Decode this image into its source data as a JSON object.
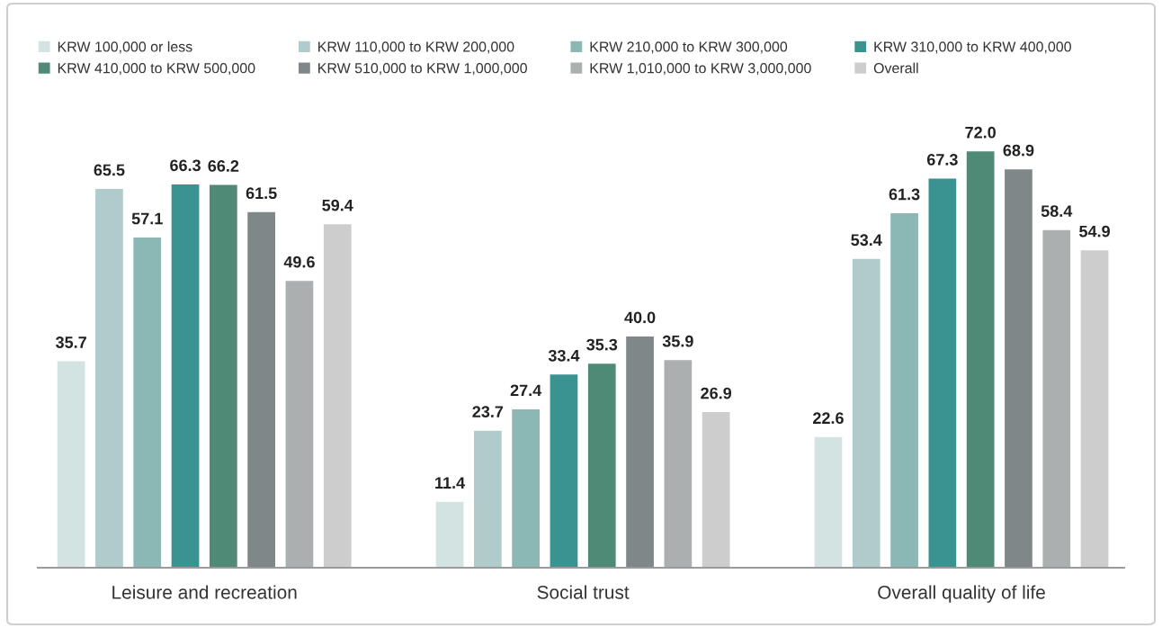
{
  "chart_data": {
    "type": "bar",
    "categories": [
      "Leisure and recreation",
      "Social trust",
      "Overall quality of life"
    ],
    "series": [
      {
        "name": "KRW 100,000 or less",
        "color": "#d3e3e1",
        "values": [
          35.7,
          11.4,
          22.6
        ],
        "value_labels": [
          "35.7",
          "11.4",
          "22.6"
        ]
      },
      {
        "name": "KRW 110,000 to KRW 200,000",
        "color": "#b0cbcb",
        "values": [
          65.5,
          23.7,
          53.4
        ],
        "value_labels": [
          "65.5",
          "23.7",
          "53.4"
        ]
      },
      {
        "name": "KRW 210,000 to KRW 300,000",
        "color": "#8bb7b5",
        "values": [
          57.1,
          27.4,
          61.3
        ],
        "value_labels": [
          "57.1",
          "27.4",
          "61.3"
        ]
      },
      {
        "name": "KRW 310,000 to KRW 400,000",
        "color": "#3a9390",
        "values": [
          66.3,
          33.4,
          67.3
        ],
        "value_labels": [
          "66.3",
          "33.4",
          "67.3"
        ]
      },
      {
        "name": "KRW 410,000 to KRW 500,000",
        "color": "#4e8a75",
        "values": [
          66.2,
          35.3,
          72.0
        ],
        "value_labels": [
          "66.2",
          "35.3",
          "72.0"
        ]
      },
      {
        "name": "KRW 510,000 to KRW 1,000,000",
        "color": "#7f8789",
        "values": [
          61.5,
          40.0,
          68.9
        ],
        "value_labels": [
          "61.5",
          "40.0",
          "68.9"
        ]
      },
      {
        "name": "KRW 1,010,000 to KRW 3,000,000",
        "color": "#abafaf",
        "values": [
          49.6,
          35.9,
          58.4
        ],
        "value_labels": [
          "49.6",
          "35.9",
          "58.4"
        ]
      },
      {
        "name": "Overall",
        "color": "#cccdcc",
        "values": [
          59.4,
          26.9,
          54.9
        ],
        "value_labels": [
          "59.4",
          "26.9",
          "54.9"
        ]
      }
    ],
    "legend": "top",
    "tick_labels": "x"
  }
}
